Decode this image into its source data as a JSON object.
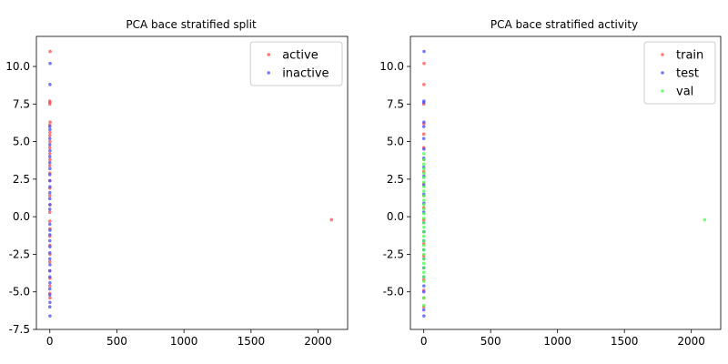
{
  "chart_data": [
    {
      "type": "scatter",
      "title": "PCA bace stratified split",
      "xlabel": "",
      "ylabel": "",
      "xlim": [
        -100,
        2220
      ],
      "ylim": [
        -7.5,
        12.0
      ],
      "xticks": [
        0,
        500,
        1000,
        1500,
        2000
      ],
      "yticks": [
        -7.5,
        -5.0,
        -2.5,
        0.0,
        2.5,
        5.0,
        7.5,
        10.0
      ],
      "legend_position": "upper-right",
      "series": [
        {
          "name": "active",
          "color": "#ff4b4b",
          "points": [
            [
              2,
              11.0
            ],
            [
              0,
              7.7
            ],
            [
              1,
              7.6
            ],
            [
              0,
              7.5
            ],
            [
              2,
              6.3
            ],
            [
              0,
              6.1
            ],
            [
              1,
              5.6
            ],
            [
              0,
              5.4
            ],
            [
              1,
              5.0
            ],
            [
              0,
              4.6
            ],
            [
              0,
              4.2
            ],
            [
              1,
              3.8
            ],
            [
              0,
              3.4
            ],
            [
              0,
              2.9
            ],
            [
              1,
              2.4
            ],
            [
              0,
              1.9
            ],
            [
              0,
              1.4
            ],
            [
              1,
              0.8
            ],
            [
              0,
              0.3
            ],
            [
              0,
              -0.3
            ],
            [
              1,
              -0.8
            ],
            [
              0,
              -1.3
            ],
            [
              0,
              -1.9
            ],
            [
              1,
              -2.5
            ],
            [
              0,
              -3.0
            ],
            [
              0,
              -3.6
            ],
            [
              1,
              -4.1
            ],
            [
              0,
              -4.6
            ],
            [
              0,
              -5.1
            ],
            [
              1,
              -5.4
            ],
            [
              2100,
              -0.2
            ]
          ]
        },
        {
          "name": "inactive",
          "color": "#4b4bff",
          "points": [
            [
              2,
              10.2
            ],
            [
              1,
              8.8
            ],
            [
              0,
              6.0
            ],
            [
              1,
              5.8
            ],
            [
              0,
              5.2
            ],
            [
              0,
              4.8
            ],
            [
              1,
              4.4
            ],
            [
              0,
              4.0
            ],
            [
              0,
              3.6
            ],
            [
              1,
              3.2
            ],
            [
              0,
              2.8
            ],
            [
              0,
              2.4
            ],
            [
              1,
              2.0
            ],
            [
              0,
              1.6
            ],
            [
              0,
              1.2
            ],
            [
              1,
              0.8
            ],
            [
              0,
              0.5
            ],
            [
              0,
              -0.5
            ],
            [
              1,
              -0.9
            ],
            [
              0,
              -1.2
            ],
            [
              0,
              -1.6
            ],
            [
              1,
              -2.0
            ],
            [
              0,
              -2.4
            ],
            [
              0,
              -2.8
            ],
            [
              1,
              -3.2
            ],
            [
              0,
              -3.6
            ],
            [
              0,
              -4.0
            ],
            [
              1,
              -4.4
            ],
            [
              0,
              -4.8
            ],
            [
              0,
              -5.2
            ],
            [
              1,
              -5.7
            ],
            [
              0,
              -6.0
            ],
            [
              1,
              -6.6
            ]
          ]
        }
      ]
    },
    {
      "type": "scatter",
      "title": "PCA bace stratified activity",
      "xlabel": "",
      "ylabel": "",
      "xlim": [
        -100,
        2220
      ],
      "ylim": [
        -7.5,
        12.0
      ],
      "xticks": [
        0,
        500,
        1000,
        1500,
        2000
      ],
      "yticks": [
        -5.0,
        -2.5,
        0.0,
        2.5,
        5.0,
        7.5,
        10.0
      ],
      "legend_position": "upper-right",
      "series": [
        {
          "name": "train",
          "color": "#ff4b4b",
          "points": [
            [
              2,
              10.2
            ],
            [
              1,
              8.8
            ],
            [
              0,
              7.5
            ],
            [
              1,
              6.2
            ],
            [
              0,
              5.5
            ],
            [
              0,
              4.6
            ],
            [
              1,
              3.8
            ],
            [
              0,
              3.0
            ],
            [
              0,
              2.2
            ],
            [
              1,
              1.4
            ],
            [
              0,
              0.6
            ],
            [
              0,
              -0.2
            ],
            [
              1,
              -1.0
            ],
            [
              0,
              -1.8
            ],
            [
              0,
              -2.6
            ],
            [
              1,
              -3.4
            ],
            [
              0,
              -4.2
            ],
            [
              0,
              -4.9
            ],
            [
              1,
              -5.4
            ],
            [
              0,
              -6.0
            ]
          ]
        },
        {
          "name": "test",
          "color": "#4b4bff",
          "points": [
            [
              2,
              11.0
            ],
            [
              1,
              7.7
            ],
            [
              0,
              7.6
            ],
            [
              1,
              6.3
            ],
            [
              0,
              6.0
            ],
            [
              0,
              5.2
            ],
            [
              1,
              4.5
            ],
            [
              0,
              3.9
            ],
            [
              0,
              3.3
            ],
            [
              1,
              2.7
            ],
            [
              0,
              2.1
            ],
            [
              0,
              1.5
            ],
            [
              1,
              0.9
            ],
            [
              0,
              0.3
            ],
            [
              0,
              -0.4
            ],
            [
              1,
              -1.0
            ],
            [
              0,
              -1.6
            ],
            [
              0,
              -2.2
            ],
            [
              1,
              -2.8
            ],
            [
              0,
              -3.4
            ],
            [
              0,
              -4.0
            ],
            [
              1,
              -4.6
            ],
            [
              0,
              -5.0
            ],
            [
              0,
              -6.2
            ],
            [
              1,
              -6.6
            ]
          ]
        },
        {
          "name": "val",
          "color": "#4bff4b",
          "points": [
            [
              0,
              4.2
            ],
            [
              1,
              3.8
            ],
            [
              0,
              3.5
            ],
            [
              0,
              3.2
            ],
            [
              1,
              2.9
            ],
            [
              0,
              2.6
            ],
            [
              0,
              2.3
            ],
            [
              1,
              2.0
            ],
            [
              0,
              1.7
            ],
            [
              0,
              1.4
            ],
            [
              1,
              1.1
            ],
            [
              0,
              0.8
            ],
            [
              0,
              0.5
            ],
            [
              1,
              0.2
            ],
            [
              0,
              -0.1
            ],
            [
              0,
              -0.4
            ],
            [
              1,
              -0.7
            ],
            [
              0,
              -1.0
            ],
            [
              0,
              -1.3
            ],
            [
              1,
              -1.6
            ],
            [
              0,
              -1.9
            ],
            [
              0,
              -2.2
            ],
            [
              1,
              -2.5
            ],
            [
              0,
              -2.8
            ],
            [
              0,
              -3.1
            ],
            [
              1,
              -3.4
            ],
            [
              0,
              -3.7
            ],
            [
              0,
              -4.0
            ],
            [
              1,
              -4.3
            ],
            [
              0,
              -5.4
            ],
            [
              1,
              -5.9
            ],
            [
              2100,
              -0.2
            ]
          ]
        }
      ]
    }
  ]
}
